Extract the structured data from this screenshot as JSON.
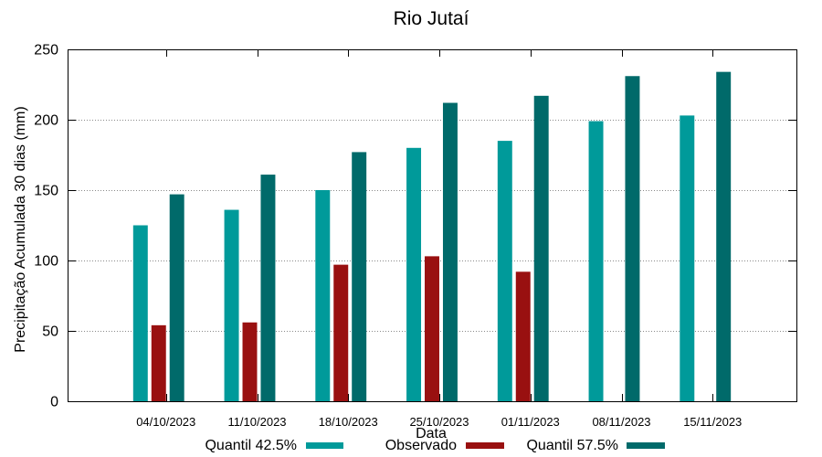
{
  "chart_data": {
    "type": "bar",
    "title": "Rio Jutaí",
    "xlabel": "Data",
    "ylabel": "Precipitação Acumulada 30 dias (mm)",
    "ylim": [
      0,
      250
    ],
    "yticks": [
      0,
      50,
      100,
      150,
      200,
      250
    ],
    "grid": true,
    "legend_position": "bottom",
    "categories": [
      "04/10/2023",
      "11/10/2023",
      "18/10/2023",
      "25/10/2023",
      "01/11/2023",
      "08/11/2023",
      "15/11/2023"
    ],
    "series": [
      {
        "name": "Quantil 42.5%",
        "color": "#009a9a",
        "values": [
          125,
          136,
          150,
          180,
          185,
          199,
          203
        ]
      },
      {
        "name": "Observado",
        "color": "#991010",
        "values": [
          54,
          56,
          97,
          103,
          92,
          null,
          null
        ]
      },
      {
        "name": "Quantil 57.5%",
        "color": "#006a6a",
        "values": [
          147,
          161,
          177,
          212,
          217,
          231,
          234
        ]
      }
    ]
  }
}
